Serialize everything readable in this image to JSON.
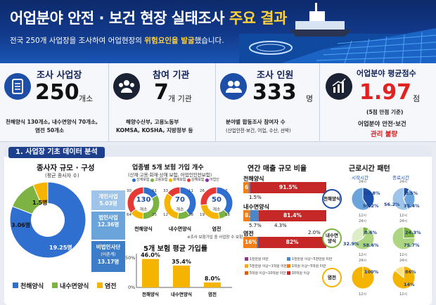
{
  "header": {
    "title_main": "어업분야 안전 · 보건 현장 실태조사 ",
    "title_highlight": "주요 결과",
    "subtitle_pre": "전국 250개 사업장을 조사하여 어업현장의 ",
    "subtitle_warn": "위험요인을 발굴",
    "subtitle_post": "했습니다."
  },
  "stats": {
    "workplaces": {
      "title": "조사 사업장",
      "value": "250",
      "unit": "개소",
      "line1": "천해양식 130개소, 내수면양식 70개소,",
      "line2": "염전 50개소"
    },
    "agencies": {
      "title": "참여 기관",
      "value": "7",
      "unit": "개 기관",
      "line1": "해양수산부, 고용노동부",
      "line2": "KOMSA, KOSHA, 지방정부 등"
    },
    "people": {
      "title": "조사 인원",
      "value": "333",
      "unit": "명",
      "line1": "분야별 합동조사 참여자 수",
      "line2": "(산업안전·보건, 어업, 수산, 선박)"
    },
    "score": {
      "title": "어업분야 평균점수",
      "value": "1.97",
      "unit": "점",
      "note": "(5점 만점 기준)",
      "line1": "어업분야 안전·보건",
      "line2": "관리 불량"
    }
  },
  "section": {
    "title": "1. 사업장 기초 데이터 분석"
  },
  "panel1": {
    "title": "종사자 규모 · 구성",
    "sub": "(평균 종사자 수)",
    "donut_labels": [
      "19.25명",
      "3.06명",
      "1.5명"
    ],
    "types": [
      {
        "name": "개인사업",
        "value": "5.03명"
      },
      {
        "name": "법인사업",
        "value": "12.36명"
      },
      {
        "name": "비법인사단",
        "note": "(어촌계)",
        "value": "13.17명"
      }
    ],
    "legend": [
      "천해양식",
      "내수면양식",
      "염전"
    ],
    "colors": [
      "#2f6fd0",
      "#7cb342",
      "#f4b400"
    ],
    "type_colors": [
      "#9ec4ea",
      "#6aa4db",
      "#3d7dc7"
    ]
  },
  "panel2": {
    "title": "업종별 5개 보험 가입 개수",
    "sub": "(산재·고용·화재·상해 보험, 어업인안전보험)",
    "legend": [
      "산재보험",
      "고용보험",
      "화재보험",
      "상해보험",
      "어업인"
    ],
    "donuts": [
      {
        "center": "130",
        "unit": "개소",
        "name": "천해양식",
        "segs": [
          "30",
          "61",
          "25",
          "64"
        ]
      },
      {
        "center": "70",
        "unit": "개소",
        "name": "내수면양식",
        "segs": [
          "33",
          "11",
          "28",
          "12"
        ]
      },
      {
        "center": "50",
        "unit": "개소",
        "name": "염전",
        "segs": [
          "26",
          "7",
          "18",
          "19"
        ]
      }
    ],
    "note": "※조사 보험가입 중 사업장 수 보험",
    "bar_title": "5개 보험 평균 가입률",
    "bar_axis_top": "50%",
    "bar_axis_bottom": "0%"
  },
  "panel3": {
    "title": "연간 매출 규모 비율",
    "rows": [
      {
        "name": "천해양식",
        "under": "1.5%"
      },
      {
        "name": "내수면양식",
        "under": "5.7%",
        "under2": "4.3%"
      },
      {
        "name": "염전",
        "under": "",
        "right": "2.0%"
      }
    ],
    "legend": [
      "1천만원 미만",
      "1천만원 이상~5천만원 미만",
      "5천만원 이상~1억원 미만",
      "1억원 이상~5억원 미만",
      "5억원 이상~10억원 미만",
      "10억원 이상"
    ],
    "colors": [
      "#8a3a8a",
      "#4b86c8",
      "#f5a623",
      "#f07f1a",
      "#e05a10",
      "#c62828"
    ]
  },
  "panel4": {
    "title": "근로시간 패턴",
    "start": "시작시간",
    "end": "종료시간",
    "rows": [
      {
        "name": "천해양식"
      },
      {
        "name": "내수면\n양식"
      },
      {
        "name": "염전"
      }
    ],
    "hour24": "24시",
    "hour6": "6시",
    "hour12": "12시",
    "hour18": "18시"
  },
  "chart_data": [
    {
      "type": "pie",
      "title": "종사자 규모 · 구성",
      "categories": [
        "천해양식",
        "내수면양식",
        "염전"
      ],
      "values": [
        19.25,
        3.06,
        1.5
      ]
    },
    {
      "type": "bar",
      "title": "5개 보험 평균 가입률",
      "categories": [
        "천해양식",
        "내수면양식",
        "염전"
      ],
      "values": [
        46.0,
        35.4,
        8.0
      ],
      "ylim": [
        0,
        50
      ]
    },
    {
      "type": "bar",
      "title": "연간 매출 규모 비율",
      "categories": [
        "천해양식",
        "내수면양식",
        "염전"
      ],
      "series": [
        {
          "name": "1천만원 미만",
          "values": [
            6.9,
            8.6,
            16.0
          ]
        },
        {
          "name": "10억원 이상",
          "values": [
            91.5,
            81.4,
            82.0
          ]
        }
      ]
    },
    {
      "type": "pie",
      "title": "근로시간 패턴",
      "categories": [
        "천해양식 시작",
        "천해양식 종료",
        "내수면양식 시작",
        "내수면양식 종료",
        "염전 시작",
        "염전 종료"
      ],
      "series": [
        {
          "name": "a",
          "values": [
            40.8,
            8.5,
            8.6,
            24.3,
            100,
            86
          ]
        },
        {
          "name": "b",
          "values": [
            59.2,
            35.4,
            58.6,
            75.7,
            0,
            14
          ]
        },
        {
          "name": "c",
          "values": [
            0,
            56.2,
            32.9,
            0,
            0,
            0
          ]
        }
      ]
    }
  ]
}
